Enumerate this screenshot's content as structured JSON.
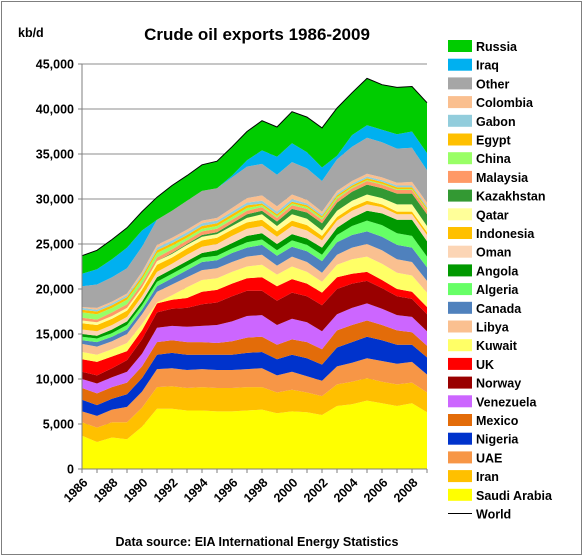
{
  "chart_data": {
    "type": "area",
    "stacked": true,
    "title": "Crude oil exports 1986-2009",
    "ylabel": "kb/d",
    "xlabel": "",
    "source": "Data source: EIA International Energy Statistics",
    "ylim": [
      0,
      45000
    ],
    "xlim": [
      1986,
      2009
    ],
    "y_ticks": [
      "0",
      "5,000",
      "10,000",
      "15,000",
      "20,000",
      "25,000",
      "30,000",
      "35,000",
      "40,000",
      "45,000"
    ],
    "x_ticks": [
      "1986",
      "1988",
      "1990",
      "1992",
      "1994",
      "1996",
      "1998",
      "2000",
      "2002",
      "2004",
      "2006",
      "2008"
    ],
    "grid": "horizontal",
    "legend_position": "right",
    "x": [
      1986,
      1987,
      1988,
      1989,
      1990,
      1991,
      1992,
      1993,
      1994,
      1995,
      1996,
      1997,
      1998,
      1999,
      2000,
      2001,
      2002,
      2003,
      2004,
      2005,
      2006,
      2007,
      2008,
      2009
    ],
    "series": [
      {
        "name": "Saudi Arabia",
        "color": "#ffff00",
        "values": [
          3700,
          3000,
          3500,
          3300,
          4700,
          6700,
          6700,
          6500,
          6500,
          6400,
          6400,
          6500,
          6600,
          6200,
          6400,
          6300,
          6000,
          7000,
          7200,
          7600,
          7300,
          7000,
          7300,
          6300
        ]
      },
      {
        "name": "Iran",
        "color": "#ffc000",
        "values": [
          1500,
          1600,
          1700,
          1900,
          2100,
          2400,
          2500,
          2500,
          2600,
          2600,
          2600,
          2600,
          2500,
          2300,
          2400,
          2200,
          2100,
          2400,
          2500,
          2500,
          2400,
          2400,
          2300,
          2200
        ]
      },
      {
        "name": "UAE",
        "color": "#f79646",
        "values": [
          1200,
          1300,
          1400,
          1700,
          1800,
          2000,
          2000,
          2000,
          2000,
          2000,
          2000,
          2000,
          2100,
          1900,
          2000,
          1800,
          1700,
          2000,
          2100,
          2200,
          2300,
          2300,
          2300,
          2000
        ]
      },
      {
        "name": "Nigeria",
        "color": "#0033cc",
        "values": [
          1300,
          1200,
          1200,
          1400,
          1500,
          1600,
          1700,
          1700,
          1600,
          1700,
          1700,
          1800,
          1800,
          1800,
          1900,
          2000,
          1800,
          2100,
          2300,
          2400,
          2300,
          2100,
          1900,
          1900
        ]
      },
      {
        "name": "Mexico",
        "color": "#e36c09",
        "values": [
          1300,
          1300,
          1300,
          1300,
          1300,
          1400,
          1400,
          1400,
          1400,
          1300,
          1500,
          1700,
          1700,
          1600,
          1700,
          1800,
          1700,
          1900,
          1900,
          1800,
          1700,
          1600,
          1400,
          1300
        ]
      },
      {
        "name": "Venezuela",
        "color": "#cc66ff",
        "values": [
          1000,
          1100,
          1100,
          1200,
          1400,
          1600,
          1600,
          1700,
          1800,
          2000,
          2200,
          2400,
          2400,
          2200,
          2300,
          2200,
          2000,
          1800,
          1900,
          1900,
          1800,
          1700,
          1700,
          1600
        ]
      },
      {
        "name": "Norway",
        "color": "#990000",
        "values": [
          800,
          900,
          1000,
          1300,
          1600,
          1700,
          1900,
          2100,
          2400,
          2500,
          2800,
          2800,
          2700,
          2700,
          2900,
          2900,
          2900,
          2800,
          2700,
          2500,
          2300,
          2100,
          2000,
          1900
        ]
      },
      {
        "name": "UK",
        "color": "#ff0000",
        "values": [
          1400,
          1500,
          1300,
          1000,
          1000,
          1000,
          1000,
          1100,
          1400,
          1400,
          1400,
          1400,
          1500,
          1600,
          1500,
          1400,
          1400,
          1300,
          1100,
          1000,
          900,
          800,
          800,
          800
        ]
      },
      {
        "name": "Kuwait",
        "color": "#ffff66",
        "values": [
          800,
          800,
          800,
          900,
          700,
          100,
          500,
          1200,
          1300,
          1300,
          1300,
          1300,
          1400,
          1300,
          1400,
          1300,
          1200,
          1400,
          1600,
          1700,
          1800,
          1800,
          1800,
          1600
        ]
      },
      {
        "name": "Libya",
        "color": "#fac090",
        "values": [
          900,
          900,
          900,
          1000,
          1100,
          1200,
          1200,
          1100,
          1100,
          1100,
          1100,
          1100,
          1100,
          1000,
          1100,
          1100,
          1000,
          1100,
          1300,
          1400,
          1500,
          1500,
          1500,
          1300
        ]
      },
      {
        "name": "Canada",
        "color": "#4f81bd",
        "values": [
          400,
          500,
          500,
          500,
          500,
          600,
          700,
          800,
          900,
          900,
          1000,
          1000,
          1100,
          1100,
          1100,
          1200,
          1300,
          1400,
          1400,
          1400,
          1500,
          1600,
          1600,
          1500
        ]
      },
      {
        "name": "Algeria",
        "color": "#66ff66",
        "values": [
          400,
          400,
          400,
          500,
          500,
          500,
          500,
          500,
          500,
          500,
          500,
          600,
          600,
          600,
          700,
          700,
          700,
          800,
          1000,
          1200,
          1300,
          1300,
          1300,
          1200
        ]
      },
      {
        "name": "Angola",
        "color": "#009900",
        "values": [
          300,
          300,
          400,
          400,
          400,
          500,
          500,
          500,
          500,
          600,
          600,
          700,
          700,
          700,
          700,
          700,
          800,
          800,
          900,
          1100,
          1300,
          1500,
          1800,
          1700
        ]
      },
      {
        "name": "Oman",
        "color": "#fcd5b5",
        "values": [
          500,
          500,
          500,
          500,
          600,
          600,
          600,
          700,
          700,
          700,
          800,
          800,
          800,
          800,
          900,
          900,
          800,
          800,
          800,
          700,
          700,
          600,
          600,
          700
        ]
      },
      {
        "name": "Indonesia",
        "color": "#ffc000",
        "values": [
          700,
          700,
          700,
          700,
          700,
          800,
          700,
          700,
          700,
          700,
          700,
          700,
          700,
          600,
          600,
          600,
          500,
          400,
          400,
          400,
          300,
          300,
          300,
          300
        ]
      },
      {
        "name": "Qatar",
        "color": "#ffff99",
        "values": [
          300,
          300,
          300,
          300,
          300,
          400,
          400,
          400,
          400,
          400,
          400,
          500,
          600,
          600,
          700,
          700,
          600,
          700,
          700,
          700,
          700,
          800,
          800,
          700
        ]
      },
      {
        "name": "Kazakhstan",
        "color": "#339933",
        "values": [
          0,
          0,
          0,
          0,
          0,
          0,
          100,
          100,
          200,
          200,
          300,
          400,
          400,
          500,
          600,
          700,
          800,
          900,
          1000,
          1100,
          1100,
          1200,
          1200,
          1300
        ]
      },
      {
        "name": "Malaysia",
        "color": "#ff9966",
        "values": [
          300,
          300,
          400,
          400,
          400,
          400,
          400,
          400,
          400,
          400,
          400,
          400,
          400,
          400,
          400,
          400,
          400,
          400,
          400,
          400,
          400,
          400,
          400,
          400
        ]
      },
      {
        "name": "China",
        "color": "#99ff66",
        "values": [
          600,
          600,
          500,
          500,
          500,
          500,
          400,
          300,
          300,
          300,
          300,
          300,
          200,
          200,
          200,
          200,
          200,
          200,
          100,
          100,
          100,
          100,
          100,
          100
        ]
      },
      {
        "name": "Egypt",
        "color": "#ffc000",
        "values": [
          300,
          300,
          300,
          300,
          300,
          300,
          300,
          300,
          300,
          300,
          300,
          300,
          200,
          200,
          200,
          200,
          200,
          200,
          200,
          200,
          200,
          200,
          200,
          200
        ]
      },
      {
        "name": "Gabon",
        "color": "#92cddc",
        "values": [
          200,
          200,
          200,
          200,
          200,
          300,
          300,
          300,
          300,
          300,
          300,
          300,
          300,
          300,
          300,
          200,
          200,
          200,
          200,
          200,
          200,
          200,
          200,
          200
        ]
      },
      {
        "name": "Colombia",
        "color": "#fabf8f",
        "values": [
          100,
          200,
          200,
          200,
          300,
          300,
          300,
          300,
          300,
          300,
          400,
          500,
          600,
          600,
          500,
          400,
          300,
          300,
          300,
          300,
          300,
          300,
          400,
          400
        ]
      },
      {
        "name": "Other",
        "color": "#a6a6a6",
        "values": [
          2300,
          2600,
          2700,
          2800,
          2800,
          2800,
          3000,
          3200,
          3300,
          3300,
          3400,
          3500,
          3500,
          3500,
          3600,
          3500,
          3400,
          3500,
          3800,
          4000,
          3900,
          3800,
          3800,
          3600
        ]
      },
      {
        "name": "Iraq",
        "color": "#00b0f0",
        "values": [
          1400,
          1700,
          2000,
          2300,
          1800,
          0,
          0,
          0,
          0,
          0,
          200,
          700,
          1500,
          2000,
          2100,
          1800,
          1500,
          400,
          1300,
          1400,
          1400,
          1600,
          1800,
          1900
        ]
      },
      {
        "name": "Russia",
        "color": "#00cc00",
        "values": [
          2000,
          2100,
          2200,
          2200,
          2100,
          2500,
          2800,
          2800,
          2900,
          3000,
          3200,
          3200,
          3300,
          3300,
          3500,
          3900,
          4400,
          5300,
          4700,
          5200,
          5000,
          5200,
          5000,
          5600
        ]
      }
    ],
    "world_line": {
      "name": "World",
      "color": "#000000"
    }
  }
}
